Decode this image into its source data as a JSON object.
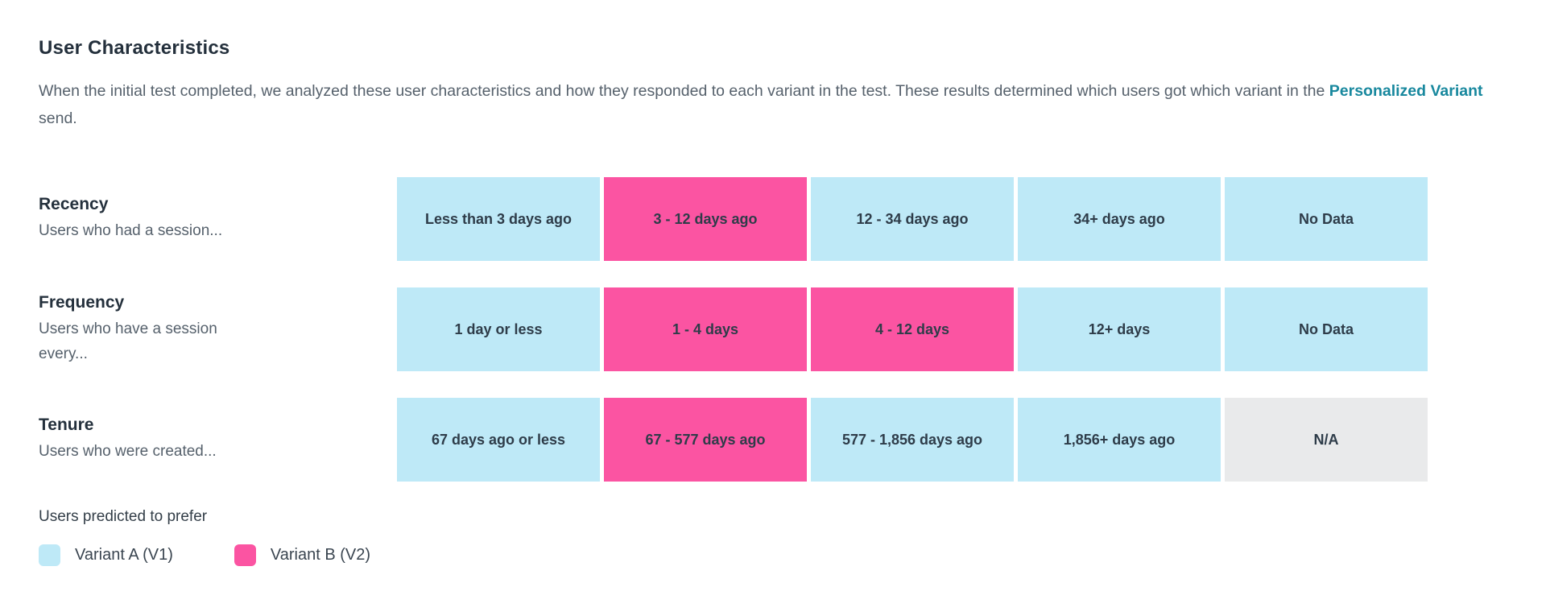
{
  "header": {
    "title": "User Characteristics",
    "description": {
      "before_link": "When the initial test completed, we analyzed these user characteristics and how they responded to each variant in the test. These results determined which users got which variant in the",
      "link": "Personalized Variant",
      "after_link": "send."
    }
  },
  "colors": {
    "variant_a_fill": "#BEE9F7",
    "variant_b_fill": "#FB54A2",
    "na_fill": "#E9EAEB",
    "title_text": "#24303C",
    "body_text": "#56616C",
    "cell_text": "#2E3C49",
    "link_text": "#18889E"
  },
  "legend": {
    "title": "Users predicted to prefer",
    "items": [
      {
        "label": "Variant A (V1)",
        "variant": "A"
      },
      {
        "label": "Variant B (V2)",
        "variant": "B"
      }
    ]
  },
  "chart_data": {
    "type": "heatmap",
    "title": "User Characteristics",
    "legend_title": "Users predicted to prefer",
    "legend_position": "bottom-left",
    "variants": {
      "A": "Variant A (V1)",
      "B": "Variant B (V2)",
      "NA": "Not applicable"
    },
    "rows": [
      {
        "category": "Recency",
        "description": "Users who had a session...",
        "buckets": [
          {
            "label": "Less than 3 days ago",
            "predicted": "A"
          },
          {
            "label": "3 - 12 days ago",
            "predicted": "B"
          },
          {
            "label": "12 - 34 days ago",
            "predicted": "A"
          },
          {
            "label": "34+ days ago",
            "predicted": "A"
          },
          {
            "label": "No Data",
            "predicted": "A"
          }
        ]
      },
      {
        "category": "Frequency",
        "description": "Users who have a session every...",
        "buckets": [
          {
            "label": "1 day or less",
            "predicted": "A"
          },
          {
            "label": "1 - 4 days",
            "predicted": "B"
          },
          {
            "label": "4 - 12 days",
            "predicted": "B"
          },
          {
            "label": "12+ days",
            "predicted": "A"
          },
          {
            "label": "No Data",
            "predicted": "A"
          }
        ]
      },
      {
        "category": "Tenure",
        "description": "Users who were created...",
        "buckets": [
          {
            "label": "67 days ago or less",
            "predicted": "A"
          },
          {
            "label": "67 - 577 days ago",
            "predicted": "B"
          },
          {
            "label": "577 - 1,856 days ago",
            "predicted": "A"
          },
          {
            "label": "1,856+ days ago",
            "predicted": "A"
          },
          {
            "label": "N/A",
            "predicted": "NA"
          }
        ]
      }
    ]
  }
}
